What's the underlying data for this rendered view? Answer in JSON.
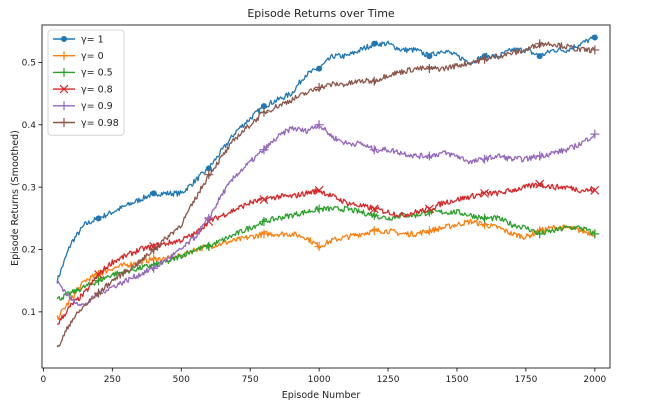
{
  "chart_data": {
    "type": "line",
    "title": "Episode Returns over Time",
    "xlabel": "Episode Number",
    "ylabel": "Episode Returns (Smoothed)",
    "xlim": [
      -5,
      2055
    ],
    "ylim": [
      0.01,
      0.56
    ],
    "xticks": [
      0,
      250,
      500,
      750,
      1000,
      1250,
      1500,
      1750,
      2000
    ],
    "yticks": [
      0.1,
      0.2,
      0.3,
      0.4,
      0.5
    ],
    "ytick_labels": [
      "0.1",
      "0.2",
      "0.3",
      "0.4",
      "0.5"
    ],
    "legend_position": "top-left",
    "grid": false,
    "x": [
      50,
      100,
      150,
      200,
      250,
      300,
      350,
      400,
      450,
      500,
      550,
      600,
      650,
      700,
      750,
      800,
      850,
      900,
      950,
      1000,
      1050,
      1100,
      1150,
      1200,
      1250,
      1300,
      1350,
      1400,
      1450,
      1500,
      1550,
      1600,
      1650,
      1700,
      1750,
      1800,
      1850,
      1900,
      1950,
      2000
    ],
    "series": [
      {
        "name": "γ= 1",
        "color": "#1f77b4",
        "marker": "circle",
        "values": [
          0.15,
          0.21,
          0.24,
          0.25,
          0.26,
          0.27,
          0.28,
          0.29,
          0.29,
          0.29,
          0.31,
          0.33,
          0.36,
          0.39,
          0.41,
          0.43,
          0.44,
          0.45,
          0.48,
          0.49,
          0.51,
          0.51,
          0.52,
          0.53,
          0.53,
          0.52,
          0.52,
          0.51,
          0.52,
          0.51,
          0.5,
          0.51,
          0.51,
          0.52,
          0.52,
          0.51,
          0.52,
          0.52,
          0.53,
          0.54
        ]
      },
      {
        "name": "γ= 0",
        "color": "#ff7f0e",
        "marker": "plus",
        "values": [
          0.09,
          0.12,
          0.15,
          0.16,
          0.17,
          0.175,
          0.18,
          0.185,
          0.185,
          0.19,
          0.2,
          0.205,
          0.21,
          0.215,
          0.22,
          0.225,
          0.225,
          0.225,
          0.22,
          0.205,
          0.215,
          0.22,
          0.225,
          0.23,
          0.23,
          0.225,
          0.225,
          0.23,
          0.235,
          0.24,
          0.245,
          0.24,
          0.235,
          0.225,
          0.22,
          0.23,
          0.235,
          0.235,
          0.23,
          0.225
        ]
      },
      {
        "name": "γ= 0.5",
        "color": "#2ca02c",
        "marker": "plus",
        "values": [
          0.12,
          0.13,
          0.14,
          0.15,
          0.16,
          0.165,
          0.17,
          0.175,
          0.18,
          0.19,
          0.2,
          0.205,
          0.215,
          0.225,
          0.235,
          0.245,
          0.25,
          0.255,
          0.26,
          0.265,
          0.265,
          0.265,
          0.26,
          0.255,
          0.25,
          0.255,
          0.255,
          0.26,
          0.26,
          0.26,
          0.255,
          0.25,
          0.25,
          0.24,
          0.235,
          0.225,
          0.23,
          0.235,
          0.235,
          0.225
        ]
      },
      {
        "name": "γ= 0.8",
        "color": "#d62728",
        "marker": "x",
        "values": [
          0.08,
          0.11,
          0.13,
          0.16,
          0.18,
          0.19,
          0.2,
          0.205,
          0.21,
          0.215,
          0.225,
          0.245,
          0.255,
          0.265,
          0.275,
          0.28,
          0.285,
          0.285,
          0.29,
          0.295,
          0.285,
          0.275,
          0.27,
          0.265,
          0.26,
          0.255,
          0.26,
          0.265,
          0.275,
          0.28,
          0.285,
          0.29,
          0.29,
          0.295,
          0.3,
          0.305,
          0.3,
          0.3,
          0.295,
          0.295
        ]
      },
      {
        "name": "γ= 0.9",
        "color": "#9467bd",
        "marker": "plus",
        "values": [
          0.15,
          0.12,
          0.11,
          0.13,
          0.14,
          0.15,
          0.16,
          0.17,
          0.185,
          0.2,
          0.22,
          0.25,
          0.29,
          0.32,
          0.34,
          0.36,
          0.38,
          0.395,
          0.39,
          0.4,
          0.38,
          0.37,
          0.37,
          0.36,
          0.36,
          0.355,
          0.35,
          0.35,
          0.355,
          0.35,
          0.34,
          0.345,
          0.35,
          0.345,
          0.345,
          0.35,
          0.355,
          0.36,
          0.37,
          0.385
        ]
      },
      {
        "name": "γ= 0.98",
        "color": "#8c564b",
        "marker": "plus",
        "values": [
          0.04,
          0.085,
          0.11,
          0.13,
          0.15,
          0.165,
          0.18,
          0.2,
          0.22,
          0.24,
          0.28,
          0.32,
          0.35,
          0.38,
          0.4,
          0.42,
          0.43,
          0.44,
          0.45,
          0.46,
          0.465,
          0.465,
          0.47,
          0.47,
          0.48,
          0.485,
          0.49,
          0.49,
          0.49,
          0.495,
          0.5,
          0.505,
          0.51,
          0.515,
          0.52,
          0.53,
          0.53,
          0.525,
          0.52,
          0.52
        ]
      }
    ]
  }
}
